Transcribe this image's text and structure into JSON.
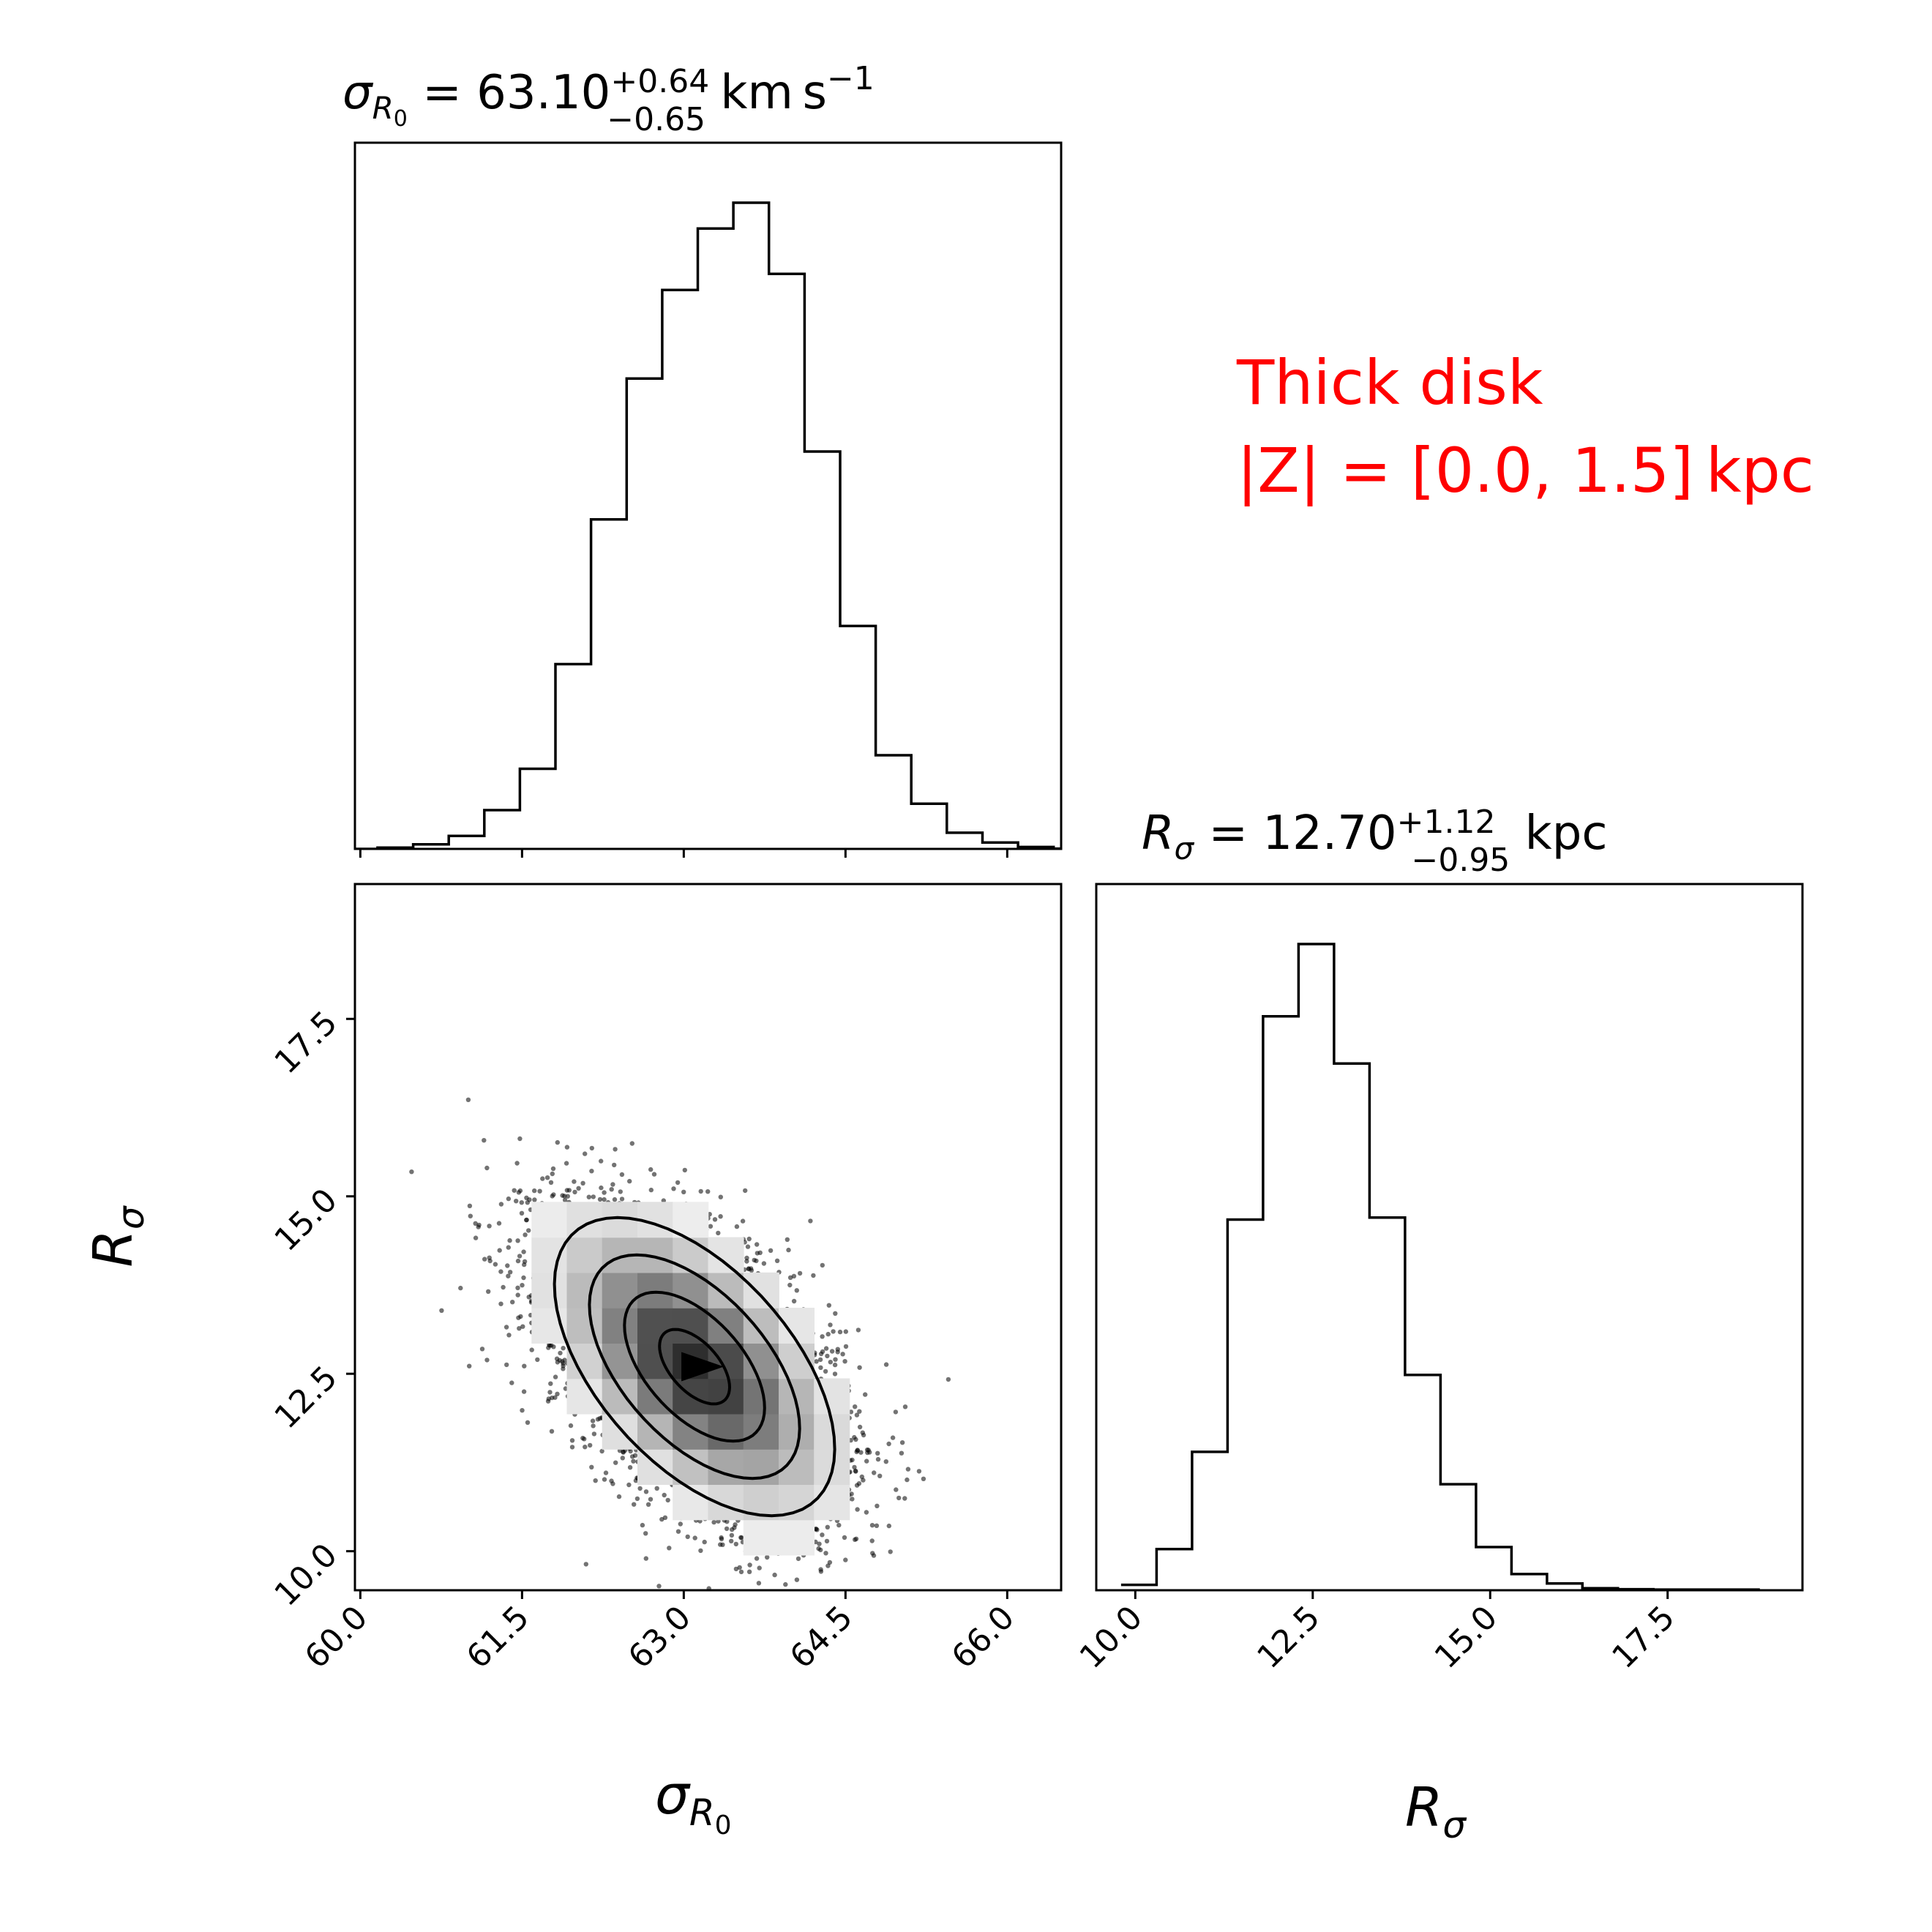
{
  "chart_data": {
    "type": "corner",
    "annotation": {
      "line1": "Thick disk",
      "line2": "|Z| = [0.0, 1.5] kpc",
      "color": "#ff0000"
    },
    "params": [
      {
        "key": "sigma",
        "label": "σ",
        "label_sub": "R",
        "label_subsub": "0",
        "title": {
          "prefix": " = 63.10",
          "sup": "+0.64",
          "sub": "−0.65",
          "unit": " km s",
          "unit_sup": "−1"
        },
        "range": [
          59.95,
          66.5
        ],
        "ticks": [
          60.0,
          61.5,
          63.0,
          64.5,
          66.0
        ],
        "tick_labels": [
          "60.0",
          "61.5",
          "63.0",
          "64.5",
          "66.0"
        ],
        "hist": {
          "start": 59.5,
          "width": 0.33,
          "counts": [
            0,
            0,
            0.002,
            0.007,
            0.02,
            0.06,
            0.124,
            0.286,
            0.51,
            0.728,
            0.865,
            0.96,
            1.0,
            0.89,
            0.615,
            0.345,
            0.145,
            0.07,
            0.025,
            0.01,
            0.003,
            0.0005
          ]
        }
      },
      {
        "key": "rsigma",
        "label": "R",
        "label_sub": "σ",
        "title": {
          "prefix": " = 12.70",
          "sup": "+1.12",
          "sub": "−0.95",
          "unit": " kpc"
        },
        "range": [
          9.45,
          19.4
        ],
        "ticks": [
          10.0,
          12.5,
          15.0,
          17.5
        ],
        "tick_labels": [
          "10.0",
          "12.5",
          "15.0",
          "17.5"
        ],
        "hist": {
          "start": 9.8,
          "width": 0.5,
          "counts": [
            0.008,
            0.061,
            0.205,
            0.549,
            0.85,
            0.957,
            0.78,
            0.552,
            0.319,
            0.157,
            0.064,
            0.024,
            0.01,
            0.003,
            0.0015,
            0.001,
            0.001,
            0.001
          ]
        }
      }
    ],
    "correlation": {
      "center": [
        63.1,
        12.6
      ],
      "sd": [
        0.65,
        1.05
      ],
      "rho": -0.55,
      "contour_levels": [
        0.5,
        1.0,
        1.5,
        2.0
      ]
    }
  }
}
